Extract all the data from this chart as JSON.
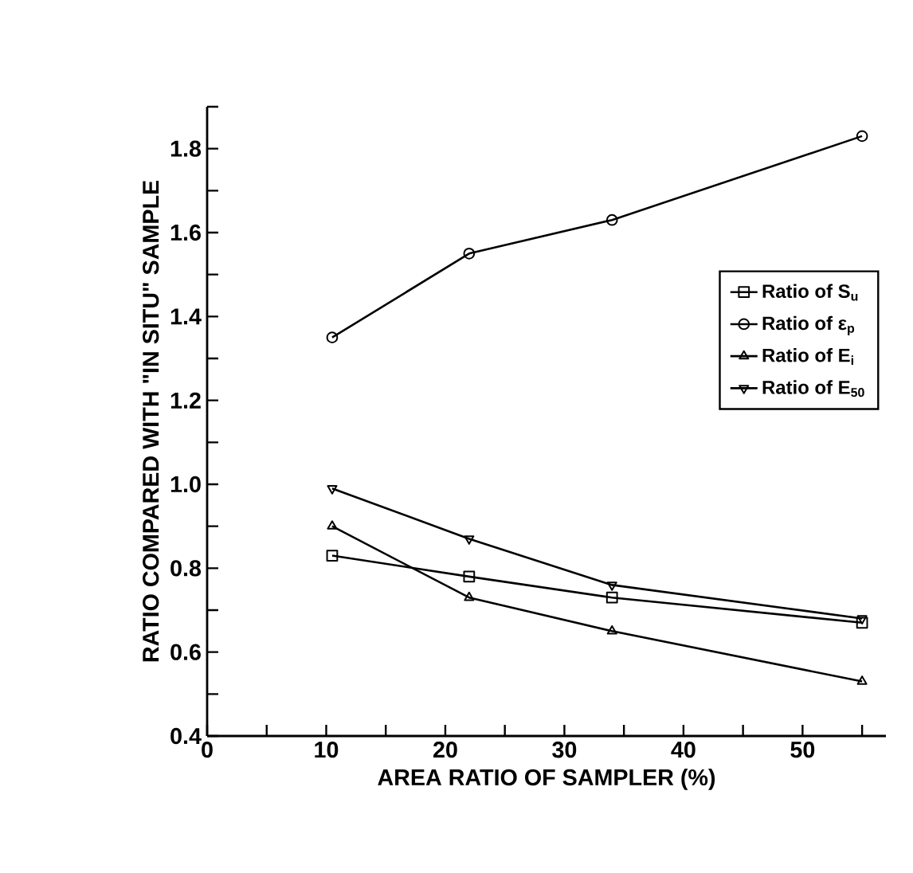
{
  "chart_data": {
    "type": "line",
    "xlabel": "AREA RATIO OF SAMPLER (%)",
    "ylabel": "RATIO COMPARED WITH \"IN SITU\" SAMPLE",
    "x": [
      10.5,
      22,
      34,
      55
    ],
    "series": [
      {
        "name": "Ratio of S$_{u}$",
        "color": "#000000",
        "marker": "square",
        "values": [
          0.83,
          0.78,
          0.73,
          0.67
        ]
      },
      {
        "name": "Ratio of ε$_{p}$",
        "color": "#000000",
        "marker": "circle",
        "values": [
          1.35,
          1.55,
          1.63,
          1.83
        ]
      },
      {
        "name": "Ratio of E$_{i}$",
        "color": "#000000",
        "marker": "triangle",
        "values": [
          0.9,
          0.73,
          0.65,
          0.53
        ]
      },
      {
        "name": "Ratio of E$_{50}$",
        "color": "#000000",
        "marker": "triangle_down",
        "values": [
          0.99,
          0.87,
          0.76,
          0.68
        ]
      }
    ],
    "xlim": [
      0,
      57
    ],
    "ylim": [
      0.4,
      1.9
    ],
    "xticks": [
      0,
      {
        "value": 5,
        "label": null
      },
      10,
      {
        "value": 15,
        "label": null
      },
      20,
      {
        "value": 25,
        "label": null
      },
      30,
      {
        "value": 35,
        "label": null
      },
      40,
      {
        "value": 45,
        "label": null
      },
      50,
      {
        "value": 55,
        "label": null
      }
    ],
    "yticks": [
      {
        "value": 0.4,
        "label": "0.4"
      },
      {
        "value": 0.5,
        "label": null
      },
      {
        "value": 0.6,
        "label": "0.6"
      },
      {
        "value": 0.7,
        "label": null
      },
      {
        "value": 0.8,
        "label": "0.8"
      },
      {
        "value": 0.9,
        "label": null
      },
      {
        "value": 1.0,
        "label": "1.0"
      },
      {
        "value": 1.1,
        "label": null
      },
      {
        "value": 1.2,
        "label": "1.2"
      },
      {
        "value": 1.3,
        "label": null
      },
      {
        "value": 1.4,
        "label": "1.4"
      },
      {
        "value": 1.5,
        "label": null
      },
      {
        "value": 1.6,
        "label": "1.6"
      },
      {
        "value": 1.7,
        "label": null
      },
      {
        "value": 1.8,
        "label": "1.8"
      },
      {
        "value": 1.9,
        "label": null
      }
    ],
    "line_style": "solid",
    "grid": false,
    "legend": "right"
  }
}
